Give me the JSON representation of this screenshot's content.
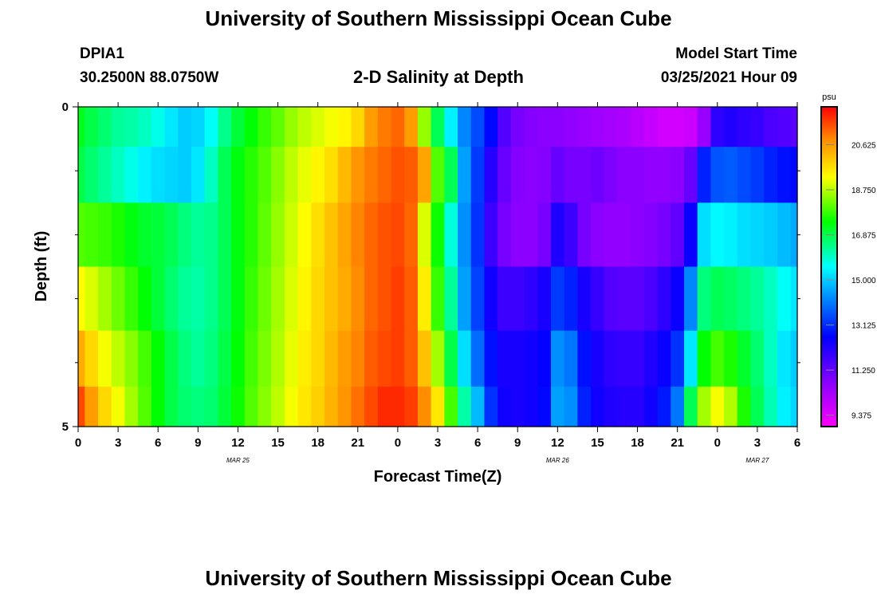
{
  "header": {
    "title_top": "University of Southern Mississippi Ocean Cube",
    "title_bottom": "University of Southern Mississippi Ocean Cube",
    "station_id": "DPIA1",
    "station_coords": "30.2500N 88.0750W",
    "plot_title": "2-D Salinity at Depth",
    "model_start_label": "Model Start Time",
    "model_start_value": "03/25/2021 Hour 09"
  },
  "chart_data": {
    "type": "heatmap",
    "title": "2-D Salinity at Depth",
    "xlabel": "Forecast Time(Z)",
    "ylabel": "Depth (ft)",
    "x_hours": [
      0,
      1,
      2,
      3,
      4,
      5,
      6,
      7,
      8,
      9,
      10,
      11,
      12,
      13,
      14,
      15,
      16,
      17,
      18,
      19,
      20,
      21,
      22,
      23,
      24,
      25,
      26,
      27,
      28,
      29,
      30,
      31,
      32,
      33,
      34,
      35,
      36,
      37,
      38,
      39,
      40,
      41,
      42,
      43,
      44,
      45,
      46,
      47,
      48,
      49,
      50,
      51,
      52,
      53,
      54
    ],
    "xlim": [
      0,
      54
    ],
    "x_tick_labels": [
      "0",
      "3",
      "6",
      "9",
      "12",
      "15",
      "18",
      "21",
      "0",
      "3",
      "6",
      "9",
      "12",
      "15",
      "18",
      "21",
      "0",
      "3",
      "6"
    ],
    "x_tick_hours": [
      0,
      3,
      6,
      9,
      12,
      15,
      18,
      21,
      24,
      27,
      30,
      33,
      36,
      39,
      42,
      45,
      48,
      51,
      54
    ],
    "date_labels": [
      {
        "text": "MAR 25",
        "hour": 12
      },
      {
        "text": "MAR 26",
        "hour": 36
      },
      {
        "text": "MAR 27",
        "hour": 51
      }
    ],
    "ylim": [
      0,
      5
    ],
    "y_tick_labels": [
      "0",
      "5"
    ],
    "y_tick_values": [
      0,
      5
    ],
    "y_minor_ticks": [
      1,
      2,
      3,
      4
    ],
    "depth_layers": [
      0.25,
      1,
      2,
      3,
      4,
      4.75
    ],
    "values": [
      [
        17.2,
        16.9,
        16.6,
        16.3,
        16.2,
        16.0,
        15.7,
        15.3,
        15.0,
        15.1,
        15.6,
        16.4,
        17.0,
        17.4,
        17.8,
        18.1,
        18.5,
        18.8,
        19.0,
        19.2,
        19.4,
        19.8,
        20.6,
        21.0,
        21.2,
        20.6,
        18.5,
        16.8,
        15.4,
        14.2,
        13.5,
        12.7,
        11.5,
        11.0,
        10.8,
        10.7,
        10.7,
        10.6,
        10.5,
        10.4,
        10.3,
        10.2,
        10.0,
        9.8,
        9.6,
        9.6,
        9.7,
        10.5,
        12.0,
        12.2,
        12.0,
        11.9,
        11.6,
        11.5,
        11.4
      ],
      [
        16.9,
        16.6,
        16.3,
        16.0,
        15.7,
        15.4,
        15.2,
        15.1,
        15.0,
        15.3,
        16.0,
        16.8,
        17.3,
        17.7,
        18.0,
        18.4,
        18.8,
        19.1,
        19.4,
        19.7,
        20.2,
        20.7,
        21.0,
        21.2,
        21.4,
        21.3,
        20.5,
        18.0,
        16.8,
        14.5,
        13.3,
        12.1,
        11.2,
        10.8,
        10.7,
        10.8,
        11.2,
        11.0,
        11.0,
        11.1,
        10.9,
        10.7,
        10.7,
        10.6,
        10.6,
        10.7,
        11.2,
        13.0,
        13.6,
        13.7,
        13.5,
        13.3,
        13.0,
        12.8,
        12.7
      ],
      [
        18.0,
        17.9,
        17.8,
        17.6,
        17.3,
        17.1,
        17.0,
        16.8,
        16.5,
        16.3,
        16.4,
        16.8,
        17.3,
        17.7,
        18.1,
        18.5,
        18.9,
        19.3,
        19.7,
        20.1,
        20.5,
        20.9,
        21.2,
        21.4,
        21.5,
        21.2,
        19.0,
        17.5,
        15.8,
        14.3,
        13.2,
        11.8,
        11.0,
        10.7,
        10.7,
        11.0,
        12.2,
        11.8,
        11.0,
        10.7,
        10.6,
        10.6,
        10.7,
        10.8,
        11.0,
        11.3,
        12.5,
        15.2,
        15.5,
        15.4,
        15.2,
        15.1,
        15.0,
        14.8,
        14.6
      ],
      [
        19.3,
        19.0,
        18.6,
        18.2,
        17.8,
        17.4,
        17.0,
        16.6,
        16.3,
        16.2,
        16.4,
        16.8,
        17.3,
        17.8,
        18.2,
        18.6,
        19.0,
        19.4,
        19.8,
        20.1,
        20.4,
        20.8,
        21.2,
        21.4,
        21.6,
        21.3,
        19.5,
        17.8,
        16.3,
        14.5,
        13.4,
        12.4,
        11.8,
        11.8,
        12.0,
        12.3,
        13.3,
        13.0,
        12.3,
        11.9,
        11.5,
        11.4,
        11.4,
        11.6,
        12.0,
        12.5,
        14.2,
        16.5,
        16.8,
        16.7,
        16.5,
        16.3,
        16.0,
        15.6,
        15.3
      ],
      [
        20.4,
        19.8,
        19.2,
        18.8,
        18.4,
        17.9,
        17.4,
        16.9,
        16.5,
        16.3,
        16.5,
        16.9,
        17.4,
        17.9,
        18.3,
        18.7,
        19.1,
        19.5,
        19.8,
        20.2,
        20.6,
        20.9,
        21.3,
        21.5,
        21.6,
        21.3,
        20.1,
        18.6,
        16.9,
        15.2,
        13.9,
        12.8,
        12.3,
        12.3,
        12.4,
        12.6,
        14.3,
        14.0,
        12.8,
        12.3,
        12.0,
        11.9,
        11.9,
        12.2,
        12.5,
        13.2,
        15.3,
        17.4,
        17.9,
        17.6,
        17.1,
        16.6,
        16.0,
        15.3,
        15.0
      ],
      [
        21.5,
        20.6,
        19.8,
        19.2,
        18.6,
        18.0,
        17.4,
        16.9,
        16.6,
        16.5,
        16.6,
        17.0,
        17.5,
        18.0,
        18.4,
        18.8,
        19.2,
        19.6,
        19.9,
        20.3,
        20.7,
        21.1,
        21.5,
        21.8,
        21.8,
        21.6,
        20.8,
        19.6,
        17.9,
        16.2,
        14.8,
        13.2,
        12.4,
        12.3,
        12.4,
        12.7,
        14.5,
        14.3,
        13.0,
        12.4,
        12.2,
        12.1,
        12.1,
        12.4,
        12.9,
        14.0,
        16.8,
        18.6,
        19.2,
        18.7,
        17.6,
        16.8,
        16.1,
        15.4,
        15.1
      ]
    ],
    "colorbar": {
      "unit": "psu",
      "tick_labels": [
        "20.625",
        "18.750",
        "16.875",
        "15.000",
        "13.125",
        "11.250",
        "9.375"
      ],
      "tick_values": [
        20.625,
        18.75,
        16.875,
        15.0,
        13.125,
        11.25,
        9.375
      ],
      "range": [
        8.9,
        22.2
      ]
    }
  }
}
